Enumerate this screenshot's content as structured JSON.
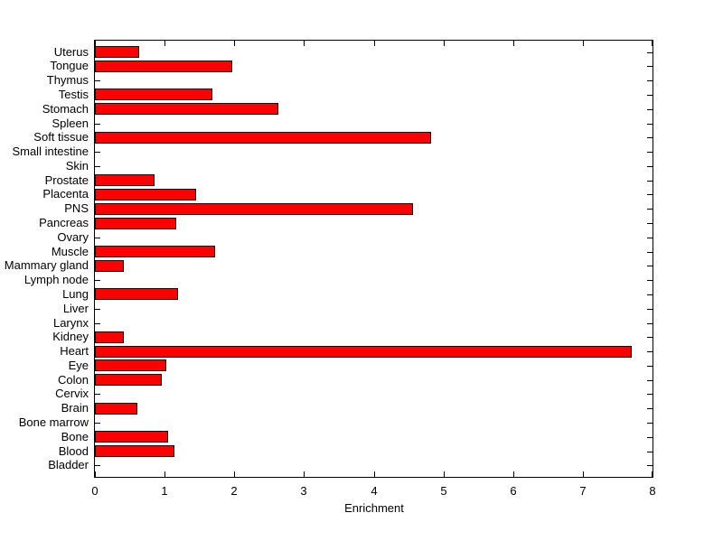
{
  "figure": {
    "background": "#ffffff",
    "axis_color": "#000000",
    "text_color": "#000000"
  },
  "chart_data": {
    "type": "bar",
    "orientation": "horizontal",
    "title": "",
    "xlabel": "Enrichment",
    "ylabel": "",
    "xlim": [
      0,
      8
    ],
    "xticks": [
      0,
      1,
      2,
      3,
      4,
      5,
      6,
      7,
      8
    ],
    "grid": false,
    "legend": false,
    "bar_color": "#ff0000",
    "bar_edge_color": "#000000",
    "categories_top_to_bottom": [
      "Uterus",
      "Tongue",
      "Thymus",
      "Testis",
      "Stomach",
      "Spleen",
      "Soft tissue",
      "Small intestine",
      "Skin",
      "Prostate",
      "Placenta",
      "PNS",
      "Pancreas",
      "Ovary",
      "Muscle",
      "Mammary gland",
      "Lymph node",
      "Lung",
      "Liver",
      "Larynx",
      "Kidney",
      "Heart",
      "Eye",
      "Colon",
      "Cervix",
      "Brain",
      "Bone marrow",
      "Bone",
      "Blood",
      "Bladder"
    ],
    "values": [
      0.63,
      1.97,
      0,
      1.68,
      2.63,
      0,
      4.82,
      0,
      0,
      0.85,
      1.45,
      4.57,
      1.17,
      0,
      1.72,
      0.41,
      0,
      1.19,
      0,
      0,
      0.41,
      7.7,
      1.02,
      0.96,
      0,
      0.61,
      0,
      1.05,
      1.14,
      0
    ]
  }
}
